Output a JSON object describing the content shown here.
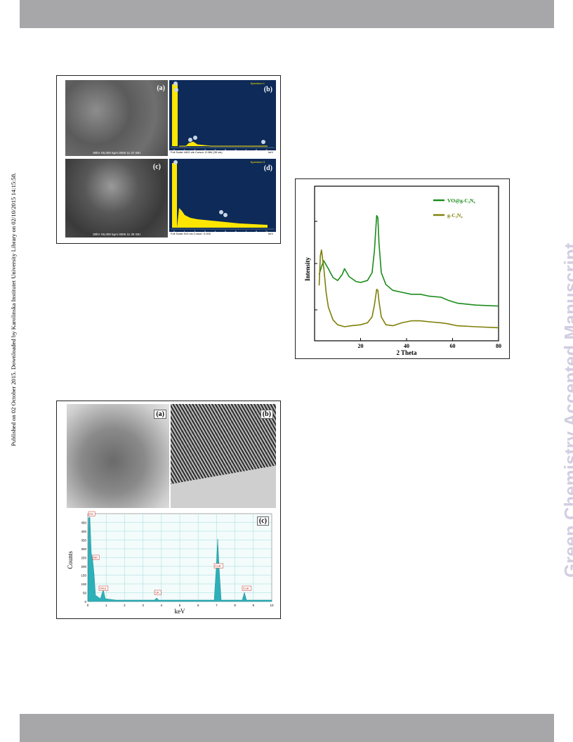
{
  "side_note": "Published on 02 October 2015. Downloaded by Karolinska Institutet University Library on 02/10/2015 14:15:58.",
  "watermark": "Green Chemistry Accepted Manuscript",
  "colors": {
    "bar": "#a7a7a9",
    "watermark": "#cfcfe2",
    "eds_bg": "#0d2a58",
    "eds_peak": "#ffe600",
    "tem_fill": "#2eb0b9",
    "xrd_vo": "#1a8c1a",
    "xrd_gcn": "#7f7f0a"
  },
  "sem_figure": {
    "panels": {
      "a": {
        "label": "(a)",
        "footer": "30kV    X5,000    5µm    0000    11 37 SEI"
      },
      "b": {
        "label": "(b)",
        "title": "Spectrum 1",
        "footer": "Full Scale 4402 cts Cursor: 5.984  (35 cts)",
        "unit": "keV",
        "ticks": [
          "0",
          "1",
          "2",
          "3",
          "4",
          "5",
          "6",
          "7",
          "8",
          "9"
        ]
      },
      "c": {
        "label": "(c)",
        "footer": "30kV    X5,000    5µm    0000    11 39 SEI"
      },
      "d": {
        "label": "(d)",
        "title": "Spectrum 3",
        "footer": "Full Scale 519 cts Cursor: 0.000",
        "unit": "keV",
        "ticks": [
          "0",
          "1",
          "2",
          "3",
          "4",
          "5",
          "6",
          "7",
          "8",
          "9"
        ]
      }
    }
  },
  "tem_figure": {
    "panels": {
      "a": {
        "label": "(a)"
      },
      "b": {
        "label": "(b)"
      },
      "c": {
        "label": "(c)"
      }
    },
    "eds": {
      "xlabel": "keV",
      "ylabel": "Counts",
      "yticks": [
        "0",
        "50",
        "100",
        "150",
        "200",
        "250",
        "300",
        "350",
        "400",
        "450"
      ],
      "xticks": [
        "0",
        "1",
        "2",
        "3",
        "4",
        "5",
        "6",
        "7",
        "8",
        "9",
        "10"
      ],
      "peak_labels": [
        "CK",
        "NK",
        "OKa",
        "VK",
        "CuK",
        "CuK"
      ]
    }
  },
  "chart_data": {
    "type": "line",
    "xlabel": "2 Theta",
    "ylabel": "Intensity",
    "xlim": [
      0,
      80
    ],
    "xticks": [
      "20",
      "40",
      "60",
      "80"
    ],
    "legend_position": "top-right",
    "series": [
      {
        "name": "VO@g-C₃N₄",
        "x": [
          2,
          3,
          4,
          6,
          8,
          10,
          12,
          13,
          15,
          18,
          20,
          23,
          25,
          26,
          27,
          27.5,
          28,
          29,
          31,
          34,
          38,
          42,
          46,
          50,
          55,
          58,
          62,
          70,
          80
        ],
        "y": [
          0.38,
          0.46,
          0.52,
          0.44,
          0.35,
          0.32,
          0.38,
          0.44,
          0.36,
          0.31,
          0.3,
          0.32,
          0.4,
          0.62,
          0.98,
          0.96,
          0.7,
          0.4,
          0.28,
          0.22,
          0.2,
          0.18,
          0.18,
          0.16,
          0.15,
          0.12,
          0.09,
          0.07,
          0.06
        ]
      },
      {
        "name": "g-C₃N₄",
        "x": [
          2,
          2.5,
          3,
          4,
          5,
          6,
          8,
          10,
          13,
          16,
          20,
          23,
          25,
          26,
          27,
          27.5,
          28,
          29,
          31,
          34,
          38,
          42,
          46,
          50,
          55,
          58,
          62,
          70,
          80
        ],
        "y": [
          0.42,
          0.72,
          0.78,
          0.6,
          0.35,
          0.2,
          0.07,
          0.02,
          0.0,
          0.01,
          0.02,
          0.04,
          0.1,
          0.22,
          0.38,
          0.37,
          0.26,
          0.1,
          0.02,
          0.01,
          0.04,
          0.06,
          0.06,
          0.05,
          0.04,
          0.03,
          0.01,
          0.0,
          -0.01
        ]
      }
    ]
  }
}
